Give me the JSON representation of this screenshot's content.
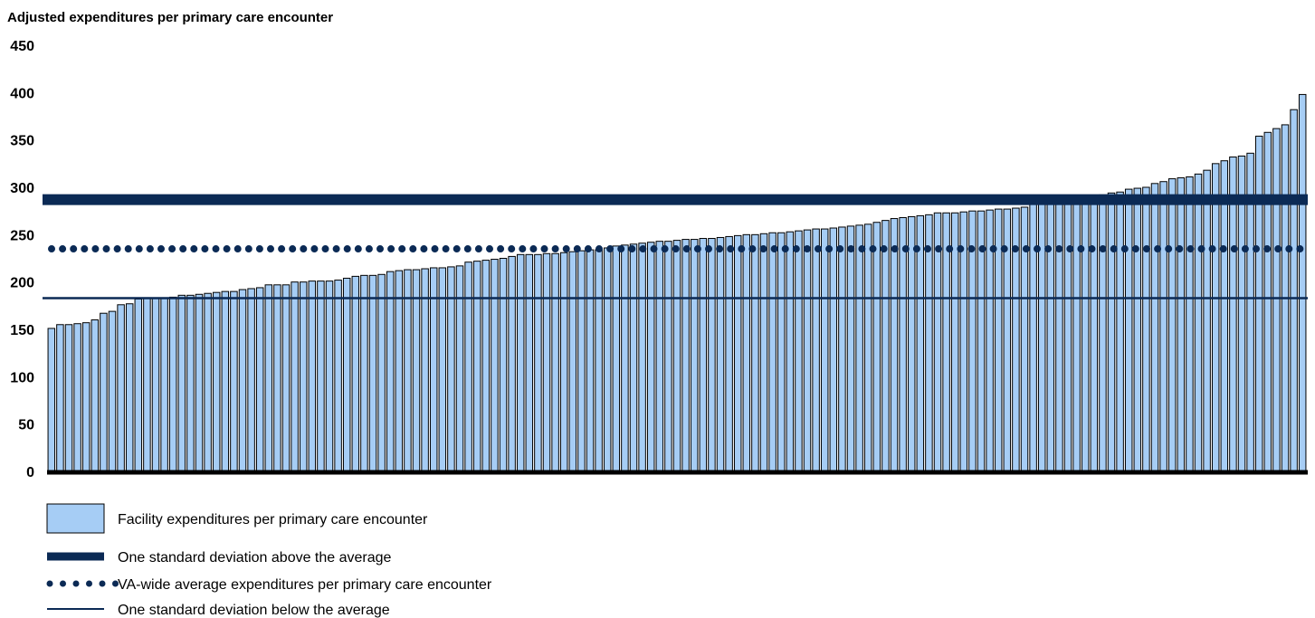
{
  "chart_data": {
    "type": "bar",
    "title": "",
    "ylabel": "Adjusted expenditures per primary care encounter",
    "xlabel": "",
    "ylim": [
      0,
      450
    ],
    "yticks": [
      0,
      50,
      100,
      150,
      200,
      250,
      300,
      350,
      400,
      450
    ],
    "grid": false,
    "legend_position": "bottom-left",
    "colors": {
      "bar_fill": "#a6cdf5",
      "bar_stroke": "#000000",
      "reference": "#0b2a55",
      "baseline": "#000000"
    },
    "series": [
      {
        "name": "Facility expenditures per primary care encounter",
        "values": [
          151,
          155,
          155,
          156,
          157,
          160,
          167,
          169,
          176,
          177,
          182,
          183,
          183,
          183,
          184,
          186,
          186,
          187,
          188,
          189,
          190,
          190,
          192,
          193,
          194,
          197,
          197,
          197,
          200,
          200,
          201,
          201,
          201,
          202,
          204,
          206,
          207,
          207,
          208,
          211,
          212,
          213,
          213,
          214,
          215,
          215,
          216,
          217,
          221,
          222,
          223,
          224,
          225,
          227,
          229,
          229,
          229,
          230,
          230,
          231,
          232,
          233,
          234,
          234,
          236,
          238,
          239,
          240,
          241,
          242,
          243,
          243,
          244,
          245,
          245,
          246,
          246,
          247,
          248,
          249,
          250,
          250,
          251,
          252,
          252,
          253,
          254,
          255,
          256,
          256,
          257,
          258,
          259,
          260,
          261,
          263,
          265,
          267,
          268,
          269,
          270,
          271,
          273,
          273,
          273,
          274,
          275,
          275,
          276,
          277,
          277,
          278,
          279,
          282,
          283,
          284,
          285,
          286,
          287,
          288,
          289,
          292,
          294,
          295,
          298,
          299,
          300,
          304,
          306,
          309,
          310,
          311,
          314,
          318,
          325,
          328,
          332,
          333,
          336,
          354,
          358,
          362,
          366,
          382,
          398
        ]
      }
    ],
    "reference_lines": [
      {
        "name": "One standard deviation above the average",
        "value": 287,
        "style": "thick"
      },
      {
        "name": "VA-wide average expenditures per primary care encounter",
        "value": 235,
        "style": "dotted"
      },
      {
        "name": "One standard deviation below the average",
        "value": 183,
        "style": "thin"
      }
    ]
  }
}
